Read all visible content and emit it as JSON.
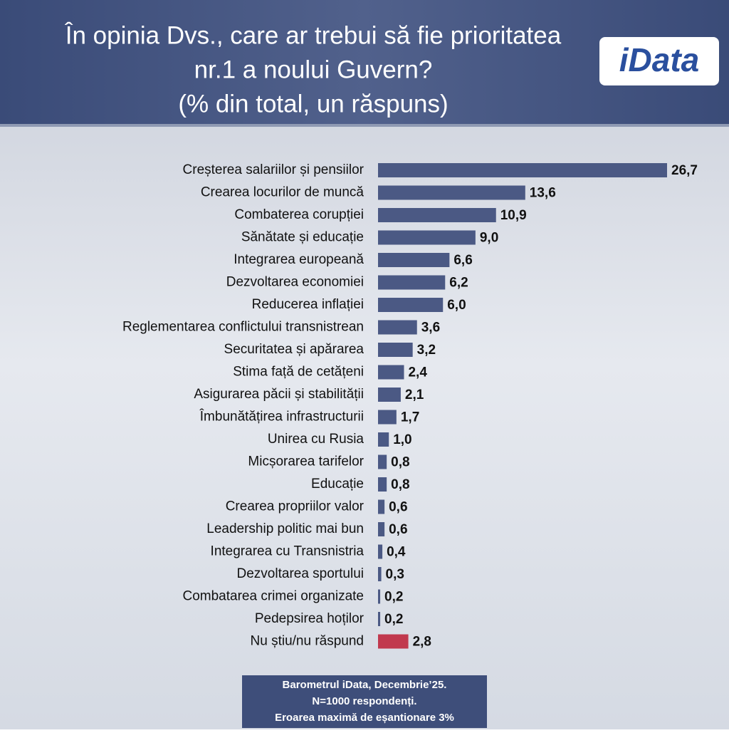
{
  "chart_data": {
    "type": "bar",
    "orientation": "horizontal",
    "title": [
      "În opinia Dvs., care ar trebui să fie prioritatea",
      "nr.1 a noului Guvern?",
      "(% din total, un răspuns)"
    ],
    "logo": "iData",
    "categories": [
      "Creșterea salariilor și pensiilor",
      "Crearea locurilor de muncă",
      "Combaterea corupției",
      "Sănătate și educație",
      "Integrarea europeană",
      "Dezvoltarea economiei",
      "Reducerea inflației",
      "Reglementarea conflictului transnistrean",
      "Securitatea și apărarea",
      "Stima față de cetățeni",
      "Asigurarea păcii și stabilității",
      "Îmbunătățirea infrastructurii",
      "Unirea cu Rusia",
      "Micșorarea tarifelor",
      "Educație",
      "Crearea propriilor valor",
      "Leadership politic mai bun",
      "Integrarea cu Transnistria",
      "Dezvoltarea sportului",
      "Combatarea crimei organizate",
      "Pedepsirea hoților",
      "Nu știu/nu răspund"
    ],
    "values": [
      26.7,
      13.6,
      10.9,
      9.0,
      6.6,
      6.2,
      6.0,
      3.6,
      3.2,
      2.4,
      2.1,
      1.7,
      1.0,
      0.8,
      0.8,
      0.6,
      0.6,
      0.4,
      0.3,
      0.2,
      0.2,
      2.8
    ],
    "value_labels": [
      "26,7",
      "13,6",
      "10,9",
      "9,0",
      "6,6",
      "6,2",
      "6,0",
      "3,6",
      "3,2",
      "2,4",
      "2,1",
      "1,7",
      "1,0",
      "0,8",
      "0,8",
      "0,6",
      "0,6",
      "0,4",
      "0,3",
      "0,2",
      "0,2",
      "2,8"
    ],
    "colors": [
      "#4b5984",
      "#4b5984",
      "#4b5984",
      "#4b5984",
      "#4b5984",
      "#4b5984",
      "#4b5984",
      "#4b5984",
      "#4b5984",
      "#4b5984",
      "#4b5984",
      "#4b5984",
      "#4b5984",
      "#4b5984",
      "#4b5984",
      "#4b5984",
      "#4b5984",
      "#4b5984",
      "#4b5984",
      "#4b5984",
      "#4b5984",
      "#c1394e"
    ],
    "note": [
      "Barometrul iData, Decembrie’25.",
      "N=1000 respondenți.",
      "Eroarea maximă de eșantionare 3%"
    ]
  }
}
